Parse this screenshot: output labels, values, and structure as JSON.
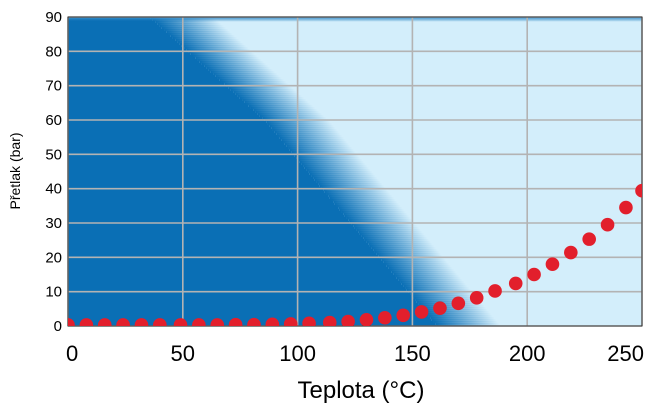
{
  "chart_data": {
    "type": "scatter",
    "xlabel": "Teplota (°C)",
    "ylabel": "Přetlak (bar)",
    "xlim": [
      0,
      250
    ],
    "ylim": [
      0,
      90
    ],
    "x_ticks": [
      0,
      50,
      100,
      150,
      200,
      250
    ],
    "y_ticks": [
      0,
      10,
      20,
      30,
      40,
      50,
      60,
      70,
      80,
      90
    ],
    "grid": true,
    "background_band": {
      "description": "dark blue region above/left of a diagonal boundary fading into light blue",
      "boundary": [
        [
          50,
          90
        ],
        [
          100,
          60
        ],
        [
          150,
          20
        ],
        [
          175,
          0
        ]
      ]
    },
    "colors": {
      "dark_region": "#0a6fb5",
      "light_region": "#d3eefb",
      "points": "#e21f2c",
      "grid": "#b3b3b3"
    },
    "series": [
      {
        "x": [
          0,
          8,
          16,
          24,
          32,
          40,
          49,
          57,
          65,
          73,
          81,
          89,
          97,
          105,
          114,
          122,
          130,
          138,
          146,
          154,
          162,
          170,
          178,
          186,
          195,
          203,
          211,
          219,
          227,
          235,
          243,
          250
        ],
        "values": [
          0.3,
          0.3,
          0.3,
          0.3,
          0.3,
          0.3,
          0.3,
          0.3,
          0.3,
          0.4,
          0.4,
          0.5,
          0.6,
          0.8,
          1.0,
          1.3,
          1.8,
          2.4,
          3.1,
          4.1,
          5.2,
          6.6,
          8.2,
          10.2,
          12.4,
          15.0,
          18.0,
          21.4,
          25.3,
          29.5,
          34.5,
          39.4
        ]
      }
    ]
  }
}
